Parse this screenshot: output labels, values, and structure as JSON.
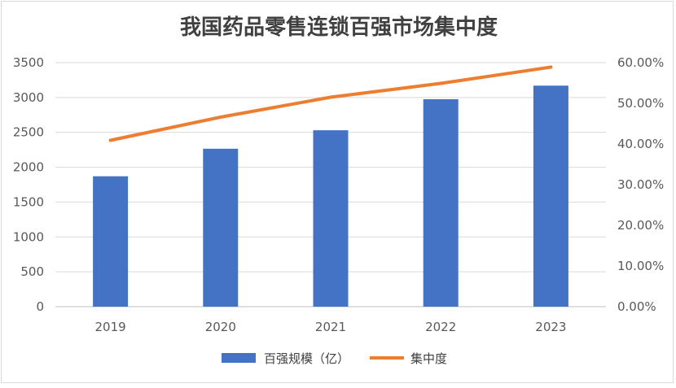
{
  "chart_data": {
    "type": "bar+line",
    "title": "我国药品零售连锁百强市场集中度",
    "categories": [
      "2019",
      "2020",
      "2021",
      "2022",
      "2023"
    ],
    "series": [
      {
        "name": "百强规模（亿）",
        "type": "bar",
        "axis": "left",
        "color": "#4472C4",
        "values": [
          1870,
          2265,
          2530,
          2975,
          3170
        ]
      },
      {
        "name": "集中度",
        "type": "line",
        "axis": "right",
        "color": "#ED7D31",
        "values": [
          0.409,
          0.466,
          0.515,
          0.549,
          0.589
        ]
      }
    ],
    "y_left": {
      "min": 0,
      "max": 3500,
      "ticks": [
        "0",
        "500",
        "1000",
        "1500",
        "2000",
        "2500",
        "3000",
        "3500"
      ]
    },
    "y_right": {
      "min": 0,
      "max": 0.6,
      "ticks": [
        "0.00%",
        "10.00%",
        "20.00%",
        "30.00%",
        "40.00%",
        "50.00%",
        "60.00%"
      ]
    },
    "grid": true,
    "legend_position": "bottom"
  }
}
